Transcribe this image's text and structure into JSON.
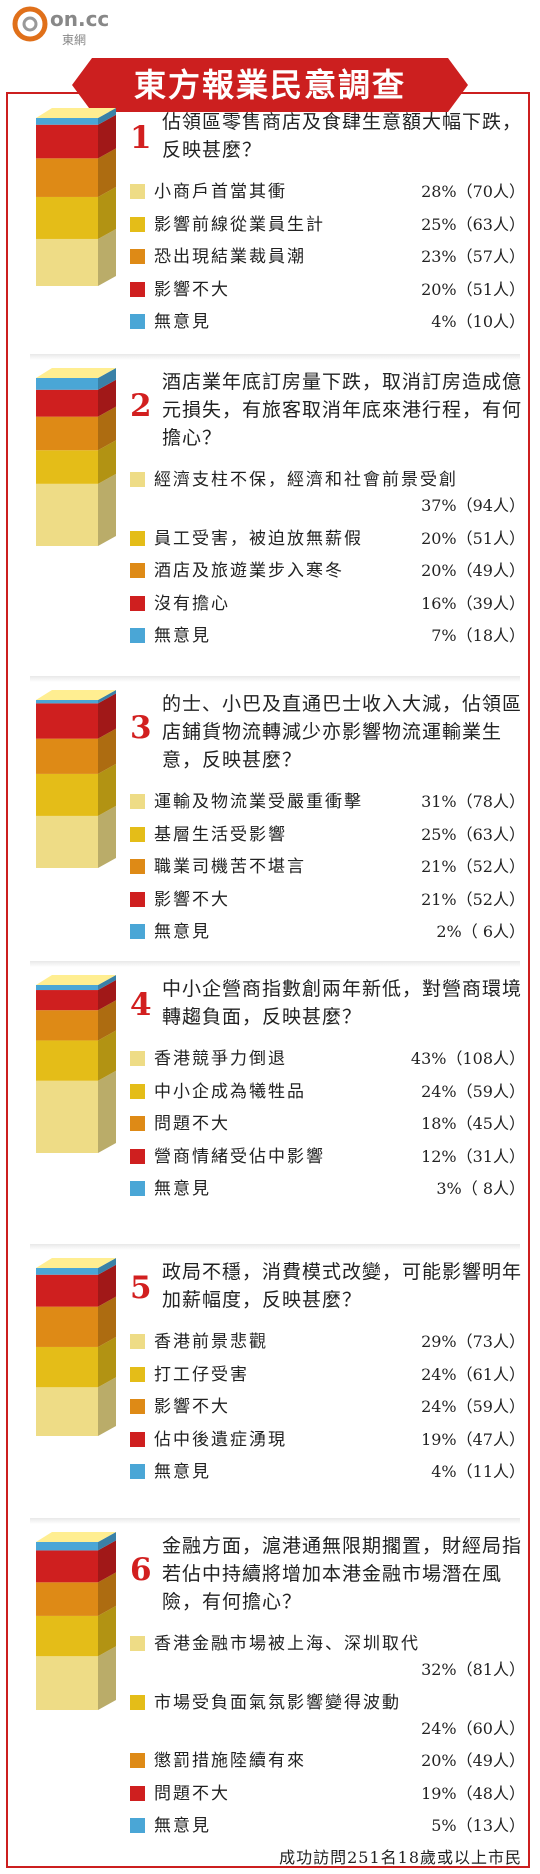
{
  "site_logo": {
    "text": "on.cc",
    "subtext": "東網"
  },
  "banner_title": "東方報業民意調查",
  "colors": {
    "accent": "#cc1f1f",
    "palette": [
      "#eedc86",
      "#e4bd18",
      "#de8a16",
      "#cf1f1f",
      "#4aa6d6"
    ]
  },
  "chart_data": [
    {
      "type": "bar",
      "number": "1",
      "question": "佔領區零售商店及食肆生意額大幅下跌，反映甚麼？",
      "series": [
        {
          "name": "小商戶首當其衝",
          "value": 28,
          "count_text": "28%（70人）"
        },
        {
          "name": "影響前線從業員生計",
          "value": 25,
          "count_text": "25%（63人）"
        },
        {
          "name": "恐出現結業裁員潮",
          "value": 23,
          "count_text": "23%（57人）"
        },
        {
          "name": "影響不大",
          "value": 20,
          "count_text": "20%（51人）"
        },
        {
          "name": "無意見",
          "value": 4,
          "count_text": "4%（10人）"
        }
      ]
    },
    {
      "type": "bar",
      "number": "2",
      "question": "酒店業年底訂房量下跌，取消訂房造成億元損失，有旅客取消年底來港行程，有何擔心？",
      "series": [
        {
          "name": "經濟支柱不保，經濟和社會前景受創",
          "value": 37,
          "count_text": "37%（94人）"
        },
        {
          "name": "員工受害，被迫放無薪假",
          "value": 20,
          "count_text": "20%（51人）"
        },
        {
          "name": "酒店及旅遊業步入寒冬",
          "value": 20,
          "count_text": "20%（49人）"
        },
        {
          "name": "沒有擔心",
          "value": 16,
          "count_text": "16%（39人）"
        },
        {
          "name": "無意見",
          "value": 7,
          "count_text": "7%（18人）"
        }
      ]
    },
    {
      "type": "bar",
      "number": "3",
      "question": "的士、小巴及直通巴士收入大減，佔領區店鋪貨物流轉減少亦影響物流運輸業生意，反映甚麼？",
      "series": [
        {
          "name": "運輸及物流業受嚴重衝擊",
          "value": 31,
          "count_text": "31%（78人）"
        },
        {
          "name": "基層生活受影響",
          "value": 25,
          "count_text": "25%（63人）"
        },
        {
          "name": "職業司機苦不堪言",
          "value": 21,
          "count_text": "21%（52人）"
        },
        {
          "name": "影響不大",
          "value": 21,
          "count_text": "21%（52人）"
        },
        {
          "name": "無意見",
          "value": 2,
          "count_text": "2%（ 6人）"
        }
      ]
    },
    {
      "type": "bar",
      "number": "4",
      "question": "中小企營商指數創兩年新低，對營商環境轉趨負面，反映甚麼？",
      "series": [
        {
          "name": "香港競爭力倒退",
          "value": 43,
          "count_text": "43%（108人）"
        },
        {
          "name": "中小企成為犧牲品",
          "value": 24,
          "count_text": "24%（59人）"
        },
        {
          "name": "問題不大",
          "value": 18,
          "count_text": "18%（45人）"
        },
        {
          "name": "營商情緒受佔中影響",
          "value": 12,
          "count_text": "12%（31人）"
        },
        {
          "name": "無意見",
          "value": 3,
          "count_text": "3%（ 8人）"
        }
      ]
    },
    {
      "type": "bar",
      "number": "5",
      "question": "政局不穩，消費模式改變，可能影響明年加薪幅度，反映甚麼？",
      "series": [
        {
          "name": "香港前景悲觀",
          "value": 29,
          "count_text": "29%（73人）"
        },
        {
          "name": "打工仔受害",
          "value": 24,
          "count_text": "24%（61人）"
        },
        {
          "name": "影響不大",
          "value": 24,
          "count_text": "24%（59人）"
        },
        {
          "name": "佔中後遺症湧現",
          "value": 19,
          "count_text": "19%（47人）"
        },
        {
          "name": "無意見",
          "value": 4,
          "count_text": "4%（11人）"
        }
      ]
    },
    {
      "type": "bar",
      "number": "6",
      "question": "金融方面，滬港通無限期擱置，財經局指若佔中持續將增加本港金融市場潛在風險，有何擔心？",
      "series": [
        {
          "name": "香港金融市場被上海、深圳取代",
          "value": 32,
          "count_text": "32%（81人）"
        },
        {
          "name": "市場受負面氣氛影響變得波動",
          "value": 24,
          "count_text": "24%（60人）"
        },
        {
          "name": "懲罰措施陸續有來",
          "value": 20,
          "count_text": "20%（49人）"
        },
        {
          "name": "問題不大",
          "value": 19,
          "count_text": "19%（48人）"
        },
        {
          "name": "無意見",
          "value": 5,
          "count_text": "5%（13人）"
        }
      ]
    }
  ],
  "footer": "成功訪問251名18歲或以上市民"
}
